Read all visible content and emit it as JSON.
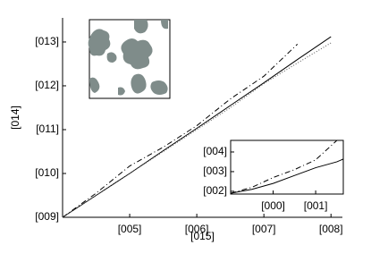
{
  "chart_data": [
    {
      "type": "line",
      "x_label": "[015]",
      "y_label": "[014]",
      "x": [
        0,
        0.5,
        1,
        1.5,
        2,
        2.5,
        3,
        3.5,
        4
      ],
      "series": [
        {
          "color": "#000000",
          "linestyle": "solid",
          "values": [
            0,
            0.5,
            1.0,
            1.52,
            2.03,
            2.55,
            3.07,
            3.6,
            4.12
          ]
        },
        {
          "color": "#000000",
          "linestyle": "dashdot",
          "values": [
            0,
            0.55,
            1.17,
            1.6,
            2.09,
            2.7,
            3.22,
            3.95,
            null
          ]
        },
        {
          "color": "#555555",
          "linestyle": "dotted",
          "values": [
            0,
            0.5,
            1.0,
            1.5,
            2.0,
            2.5,
            3.05,
            3.52,
            3.98
          ]
        }
      ],
      "xlim": [
        0,
        4.17
      ],
      "ylim": [
        0,
        4.55
      ],
      "xticks": [
        {
          "value": 1,
          "label": "[005]"
        },
        {
          "value": 2,
          "label": "[006]"
        },
        {
          "value": 3,
          "label": "[007]"
        },
        {
          "value": 4,
          "label": "[008]"
        }
      ],
      "yticks": [
        {
          "value": 0,
          "label": "[009]"
        },
        {
          "value": 1,
          "label": "[010]"
        },
        {
          "value": 2,
          "label": "[011]"
        },
        {
          "value": 3,
          "label": "[012]"
        },
        {
          "value": 4,
          "label": "[013]"
        }
      ]
    },
    {
      "type": "line",
      "x": [
        0,
        0.5,
        1,
        1.5,
        2,
        2.5,
        2.65
      ],
      "series": [
        {
          "color": "#000000",
          "linestyle": "solid",
          "values": [
            1.9,
            2.1,
            2.4,
            2.8,
            3.2,
            3.5,
            3.64
          ]
        },
        {
          "color": "#000000",
          "linestyle": "dashdot",
          "values": [
            1.9,
            2.2,
            2.7,
            3.1,
            3.6,
            4.59,
            4.59
          ]
        }
      ],
      "xlim": [
        0,
        2.65
      ],
      "ylim": [
        1.86,
        4.59
      ],
      "xticks": [
        {
          "value": 1,
          "label": "[000]"
        },
        {
          "value": 2,
          "label": "[001]"
        }
      ],
      "yticks": [
        {
          "value": 2,
          "label": "[002]"
        },
        {
          "value": 3,
          "label": "[003]"
        },
        {
          "value": 4,
          "label": "[004]"
        }
      ]
    }
  ]
}
